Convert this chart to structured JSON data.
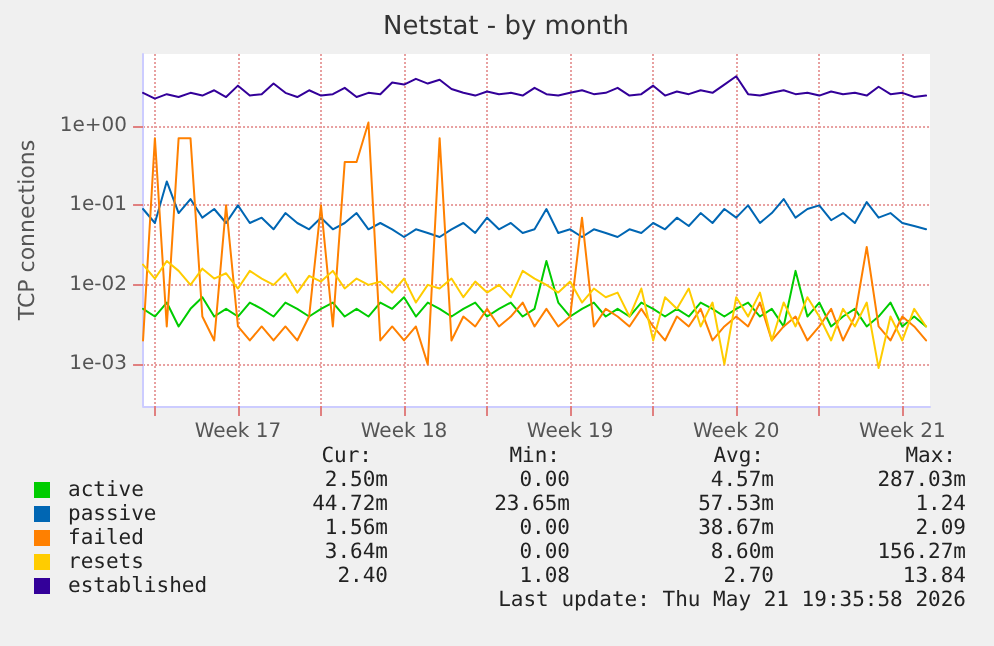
{
  "chart_data": {
    "type": "line",
    "title": "Netstat - by month",
    "ylabel": "TCP connections",
    "log": "y",
    "grid": true,
    "legend": "bottom left",
    "marker": "none",
    "line_style": "solid",
    "ylim": [
      0.0003,
      8
    ],
    "yticks": [
      {
        "value": 0.001,
        "label": "1e-03"
      },
      {
        "value": 0.01,
        "label": "1e-02"
      },
      {
        "value": 0.1,
        "label": "1e-01"
      },
      {
        "value": 1,
        "label": "1e+00"
      }
    ],
    "xlim": [
      "2026-04-19T12:00",
      "2026-05-22T16:00"
    ],
    "xticks": [
      {
        "value": "2026-04-20",
        "label": null
      },
      {
        "value": "2026-04-23T12:00",
        "label": "Week 17"
      },
      {
        "value": "2026-04-27",
        "label": null
      },
      {
        "value": "2026-04-30T12:00",
        "label": "Week 18"
      },
      {
        "value": "2026-05-04",
        "label": null
      },
      {
        "value": "2026-05-07T12:00",
        "label": "Week 19"
      },
      {
        "value": "2026-05-11",
        "label": null
      },
      {
        "value": "2026-05-14T12:00",
        "label": "Week 20"
      },
      {
        "value": "2026-05-18",
        "label": null
      },
      {
        "value": "2026-05-21T12:00",
        "label": "Week 21"
      }
    ],
    "x": [
      "2026-04-19T12:00",
      "2026-04-20T00:00",
      "2026-04-20T12:00",
      "2026-04-21T00:00",
      "2026-04-21T12:00",
      "2026-04-22T00:00",
      "2026-04-22T12:00",
      "2026-04-23T00:00",
      "2026-04-23T12:00",
      "2026-04-24T00:00",
      "2026-04-24T12:00",
      "2026-04-25T00:00",
      "2026-04-25T12:00",
      "2026-04-26T00:00",
      "2026-04-26T12:00",
      "2026-04-27T00:00",
      "2026-04-27T12:00",
      "2026-04-28T00:00",
      "2026-04-28T12:00",
      "2026-04-29T00:00",
      "2026-04-29T12:00",
      "2026-04-30T00:00",
      "2026-04-30T12:00",
      "2026-05-01T00:00",
      "2026-05-01T12:00",
      "2026-05-02T00:00",
      "2026-05-02T12:00",
      "2026-05-03T00:00",
      "2026-05-03T12:00",
      "2026-05-04T00:00",
      "2026-05-04T12:00",
      "2026-05-05T00:00",
      "2026-05-05T12:00",
      "2026-05-06T00:00",
      "2026-05-06T12:00",
      "2026-05-07T00:00",
      "2026-05-07T12:00",
      "2026-05-08T00:00",
      "2026-05-08T12:00",
      "2026-05-09T00:00",
      "2026-05-09T12:00",
      "2026-05-10T00:00",
      "2026-05-10T12:00",
      "2026-05-11T00:00",
      "2026-05-11T12:00",
      "2026-05-12T00:00",
      "2026-05-12T12:00",
      "2026-05-13T00:00",
      "2026-05-13T12:00",
      "2026-05-14T00:00",
      "2026-05-14T12:00",
      "2026-05-15T00:00",
      "2026-05-15T12:00",
      "2026-05-16T00:00",
      "2026-05-16T12:00",
      "2026-05-17T00:00",
      "2026-05-17T12:00",
      "2026-05-18T00:00",
      "2026-05-18T12:00",
      "2026-05-19T00:00",
      "2026-05-19T12:00",
      "2026-05-20T00:00",
      "2026-05-20T12:00",
      "2026-05-21T00:00",
      "2026-05-21T12:00",
      "2026-05-22T00:00",
      "2026-05-22T12:00"
    ],
    "series": [
      {
        "name": "active",
        "color": "#00cc00",
        "values": [
          0.005,
          0.004,
          0.006,
          0.003,
          0.005,
          0.007,
          0.004,
          0.005,
          0.004,
          0.006,
          0.005,
          0.004,
          0.006,
          0.005,
          0.004,
          0.005,
          0.006,
          0.004,
          0.005,
          0.004,
          0.006,
          0.005,
          0.007,
          0.004,
          0.006,
          0.005,
          0.004,
          0.005,
          0.006,
          0.004,
          0.005,
          0.006,
          0.004,
          0.005,
          0.02,
          0.006,
          0.004,
          0.005,
          0.006,
          0.004,
          0.005,
          0.004,
          0.006,
          0.005,
          0.004,
          0.005,
          0.004,
          0.006,
          0.005,
          0.004,
          0.005,
          0.006,
          0.004,
          0.005,
          0.003,
          0.015,
          0.004,
          0.006,
          0.003,
          0.004,
          0.005,
          0.003,
          0.004,
          0.006,
          0.003,
          0.004,
          0.003
        ]
      },
      {
        "name": "passive",
        "color": "#0066b3",
        "values": [
          0.09,
          0.06,
          0.2,
          0.08,
          0.12,
          0.07,
          0.09,
          0.06,
          0.1,
          0.06,
          0.07,
          0.05,
          0.08,
          0.06,
          0.05,
          0.07,
          0.05,
          0.06,
          0.08,
          0.05,
          0.06,
          0.05,
          0.04,
          0.05,
          0.045,
          0.04,
          0.05,
          0.06,
          0.045,
          0.07,
          0.05,
          0.06,
          0.045,
          0.05,
          0.09,
          0.045,
          0.05,
          0.04,
          0.05,
          0.045,
          0.04,
          0.05,
          0.045,
          0.06,
          0.05,
          0.07,
          0.055,
          0.08,
          0.06,
          0.09,
          0.07,
          0.1,
          0.06,
          0.08,
          0.12,
          0.07,
          0.09,
          0.1,
          0.065,
          0.08,
          0.06,
          0.11,
          0.07,
          0.08,
          0.06,
          0.055,
          0.05
        ]
      },
      {
        "name": "failed",
        "color": "#ff8000",
        "values": [
          0.002,
          0.7,
          0.003,
          0.7,
          0.7,
          0.004,
          0.002,
          0.1,
          0.003,
          0.002,
          0.003,
          0.002,
          0.003,
          0.002,
          0.004,
          0.1,
          0.003,
          0.35,
          0.35,
          1.1,
          0.002,
          0.003,
          0.002,
          0.003,
          0.001,
          0.7,
          0.002,
          0.004,
          0.003,
          0.005,
          0.003,
          0.004,
          0.006,
          0.003,
          0.005,
          0.003,
          0.004,
          0.07,
          0.003,
          0.005,
          0.004,
          0.003,
          0.005,
          0.003,
          0.002,
          0.004,
          0.003,
          0.005,
          0.002,
          0.003,
          0.004,
          0.003,
          0.006,
          0.002,
          0.003,
          0.004,
          0.002,
          0.003,
          0.005,
          0.002,
          0.004,
          0.03,
          0.003,
          0.002,
          0.004,
          0.003,
          0.002
        ]
      },
      {
        "name": "resets",
        "color": "#ffcc00",
        "values": [
          0.018,
          0.012,
          0.02,
          0.015,
          0.01,
          0.016,
          0.012,
          0.014,
          0.009,
          0.015,
          0.012,
          0.01,
          0.014,
          0.008,
          0.013,
          0.011,
          0.015,
          0.009,
          0.012,
          0.01,
          0.011,
          0.008,
          0.012,
          0.006,
          0.01,
          0.009,
          0.012,
          0.007,
          0.011,
          0.008,
          0.01,
          0.007,
          0.015,
          0.012,
          0.01,
          0.008,
          0.011,
          0.006,
          0.009,
          0.007,
          0.008,
          0.004,
          0.009,
          0.002,
          0.007,
          0.005,
          0.009,
          0.003,
          0.006,
          0.001,
          0.007,
          0.004,
          0.008,
          0.002,
          0.006,
          0.003,
          0.007,
          0.004,
          0.002,
          0.005,
          0.003,
          0.006,
          0.0009,
          0.004,
          0.002,
          0.005,
          0.003
        ]
      },
      {
        "name": "established",
        "color": "#330099",
        "values": [
          2.6,
          2.2,
          2.5,
          2.3,
          2.6,
          2.4,
          2.8,
          2.3,
          3.2,
          2.4,
          2.5,
          3.4,
          2.6,
          2.3,
          2.8,
          2.4,
          2.5,
          3.0,
          2.3,
          2.6,
          2.5,
          3.5,
          3.3,
          3.9,
          3.4,
          3.8,
          2.9,
          2.6,
          2.4,
          2.7,
          2.5,
          2.6,
          2.4,
          3.0,
          2.5,
          2.4,
          2.6,
          2.8,
          2.5,
          2.6,
          3.0,
          2.4,
          2.5,
          3.2,
          2.4,
          2.7,
          2.5,
          2.8,
          2.6,
          3.3,
          4.2,
          2.5,
          2.4,
          2.6,
          2.8,
          2.5,
          2.6,
          2.4,
          2.7,
          2.5,
          2.6,
          2.4,
          3.1,
          2.5,
          2.6,
          2.3,
          2.4
        ]
      }
    ],
    "annotations": [
      "Cur:",
      "Min:",
      "Avg:",
      "Max:",
      "2.50m",
      "0.00",
      "4.57m",
      "287.03m",
      "44.72m",
      "23.65m",
      "57.53m",
      "1.24",
      "1.56m",
      "0.00",
      "38.67m",
      "2.09",
      "3.64m",
      "0.00",
      "8.60m",
      "156.27m",
      "2.40",
      "1.08",
      "2.70",
      "13.84",
      "Last update: Thu May 21 19:35:58 2026"
    ]
  }
}
